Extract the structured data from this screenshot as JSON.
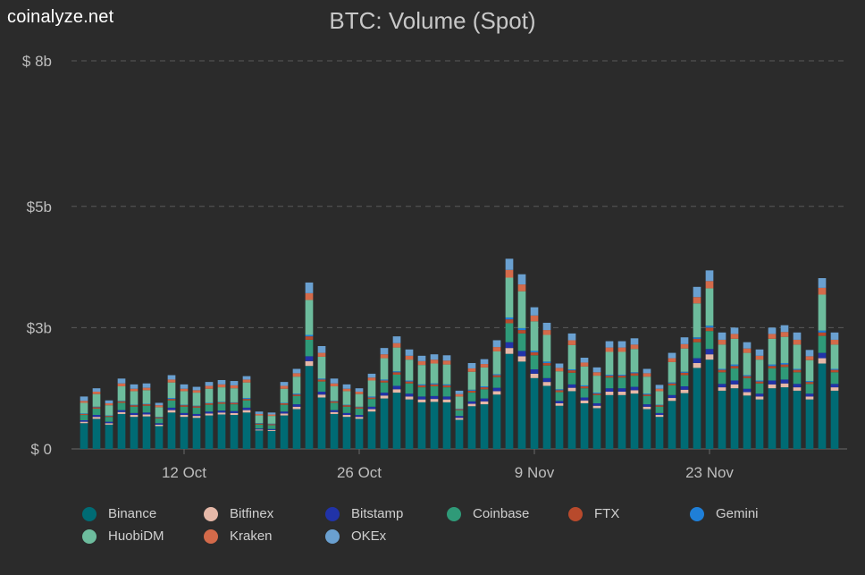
{
  "brand": "coinalyze.net",
  "chart_data": {
    "type": "bar",
    "stacked": true,
    "title": "BTC: Volume (Spot)",
    "xlabel": "",
    "ylabel": "",
    "y_ticks": [
      {
        "value": 0,
        "label": "$ 0"
      },
      {
        "value": 2.5,
        "label": "$3b"
      },
      {
        "value": 5,
        "label": "$5b"
      },
      {
        "value": 8,
        "label": "$ 8b"
      }
    ],
    "ylim": [
      0,
      8
    ],
    "y_unit": "billion USD",
    "x_start": "2021-10-03",
    "x_end": "2021-12-04",
    "x_ticks": [
      {
        "date": "2021-10-12",
        "label": "12 Oct"
      },
      {
        "date": "2021-10-26",
        "label": "26 Oct"
      },
      {
        "date": "2021-11-09",
        "label": "9 Nov"
      },
      {
        "date": "2021-11-23",
        "label": "23 Nov"
      }
    ],
    "grid": true,
    "legend_position": "bottom",
    "categories": [
      "2021-10-04",
      "2021-10-05",
      "2021-10-06",
      "2021-10-07",
      "2021-10-08",
      "2021-10-09",
      "2021-10-10",
      "2021-10-11",
      "2021-10-12",
      "2021-10-13",
      "2021-10-14",
      "2021-10-15",
      "2021-10-16",
      "2021-10-17",
      "2021-10-18",
      "2021-10-19",
      "2021-10-20",
      "2021-10-21",
      "2021-10-22",
      "2021-10-23",
      "2021-10-24",
      "2021-10-25",
      "2021-10-26",
      "2021-10-27",
      "2021-10-28",
      "2021-10-29",
      "2021-10-30",
      "2021-10-31",
      "2021-11-01",
      "2021-11-02",
      "2021-11-03",
      "2021-11-04",
      "2021-11-05",
      "2021-11-06",
      "2021-11-07",
      "2021-11-08",
      "2021-11-09",
      "2021-11-10",
      "2021-11-11",
      "2021-11-12",
      "2021-11-13",
      "2021-11-14",
      "2021-11-15",
      "2021-11-16",
      "2021-11-17",
      "2021-11-18",
      "2021-11-19",
      "2021-11-20",
      "2021-11-21",
      "2021-11-22",
      "2021-11-23",
      "2021-11-24",
      "2021-11-25",
      "2021-11-26",
      "2021-11-27",
      "2021-11-28",
      "2021-11-29",
      "2021-11-30",
      "2021-12-01",
      "2021-12-02",
      "2021-12-03"
    ],
    "totals": [
      1.08,
      1.25,
      1.0,
      1.45,
      1.33,
      1.35,
      0.95,
      1.52,
      1.33,
      1.28,
      1.38,
      1.42,
      1.4,
      1.5,
      0.77,
      0.75,
      1.38,
      1.65,
      3.43,
      2.12,
      1.45,
      1.33,
      1.25,
      1.55,
      2.08,
      2.32,
      2.05,
      1.92,
      1.95,
      1.93,
      1.2,
      1.77,
      1.85,
      2.24,
      3.92,
      3.6,
      2.92,
      2.6,
      1.78,
      2.38,
      1.88,
      1.68,
      2.22,
      2.22,
      2.28,
      1.65,
      1.32,
      1.98,
      2.3,
      3.34,
      3.68,
      2.4,
      2.5,
      2.2,
      2.05,
      2.5,
      2.55,
      2.4,
      2.04,
      3.52,
      2.4
    ],
    "series": [
      {
        "name": "Binance",
        "color": "#006b74",
        "values": [
          0.53,
          0.62,
          0.5,
          0.72,
          0.66,
          0.67,
          0.47,
          0.75,
          0.66,
          0.64,
          0.69,
          0.71,
          0.7,
          0.75,
          0.38,
          0.37,
          0.69,
          0.82,
          1.71,
          1.06,
          0.72,
          0.66,
          0.62,
          0.77,
          1.04,
          1.16,
          1.02,
          0.96,
          0.97,
          0.96,
          0.6,
          0.88,
          0.92,
          1.12,
          1.96,
          1.8,
          1.46,
          1.3,
          0.89,
          1.19,
          0.94,
          0.84,
          1.11,
          1.11,
          1.14,
          0.82,
          0.66,
          0.99,
          1.15,
          1.67,
          1.84,
          1.2,
          1.25,
          1.1,
          1.02,
          1.25,
          1.27,
          1.2,
          1.02,
          1.76,
          1.2
        ]
      },
      {
        "name": "Bitfinex",
        "color": "#e5b8a8",
        "values": [
          0.03,
          0.04,
          0.03,
          0.04,
          0.04,
          0.04,
          0.03,
          0.05,
          0.04,
          0.04,
          0.04,
          0.04,
          0.04,
          0.05,
          0.02,
          0.02,
          0.04,
          0.05,
          0.1,
          0.06,
          0.04,
          0.04,
          0.04,
          0.05,
          0.06,
          0.07,
          0.06,
          0.06,
          0.06,
          0.06,
          0.04,
          0.05,
          0.06,
          0.07,
          0.12,
          0.11,
          0.09,
          0.08,
          0.05,
          0.07,
          0.06,
          0.05,
          0.07,
          0.07,
          0.07,
          0.05,
          0.04,
          0.06,
          0.07,
          0.1,
          0.11,
          0.07,
          0.08,
          0.07,
          0.06,
          0.08,
          0.08,
          0.07,
          0.06,
          0.11,
          0.07
        ]
      },
      {
        "name": "Bitstamp",
        "color": "#2133a8",
        "values": [
          0.03,
          0.04,
          0.03,
          0.04,
          0.04,
          0.04,
          0.03,
          0.05,
          0.04,
          0.04,
          0.04,
          0.04,
          0.04,
          0.05,
          0.02,
          0.02,
          0.04,
          0.05,
          0.1,
          0.06,
          0.04,
          0.04,
          0.04,
          0.05,
          0.06,
          0.07,
          0.06,
          0.06,
          0.06,
          0.06,
          0.04,
          0.05,
          0.06,
          0.07,
          0.12,
          0.11,
          0.09,
          0.08,
          0.05,
          0.07,
          0.06,
          0.05,
          0.07,
          0.07,
          0.07,
          0.05,
          0.04,
          0.06,
          0.07,
          0.1,
          0.11,
          0.07,
          0.08,
          0.07,
          0.06,
          0.08,
          0.08,
          0.07,
          0.06,
          0.11,
          0.07
        ]
      },
      {
        "name": "Coinbase",
        "color": "#2f9a78",
        "values": [
          0.11,
          0.13,
          0.1,
          0.15,
          0.13,
          0.14,
          0.1,
          0.15,
          0.13,
          0.13,
          0.14,
          0.14,
          0.14,
          0.15,
          0.08,
          0.08,
          0.14,
          0.17,
          0.34,
          0.21,
          0.15,
          0.13,
          0.13,
          0.16,
          0.21,
          0.23,
          0.21,
          0.19,
          0.2,
          0.19,
          0.12,
          0.18,
          0.19,
          0.22,
          0.39,
          0.36,
          0.29,
          0.26,
          0.18,
          0.24,
          0.19,
          0.17,
          0.22,
          0.22,
          0.23,
          0.17,
          0.13,
          0.2,
          0.23,
          0.33,
          0.37,
          0.24,
          0.25,
          0.22,
          0.21,
          0.25,
          0.26,
          0.24,
          0.2,
          0.35,
          0.24
        ]
      },
      {
        "name": "FTX",
        "color": "#b84a2c",
        "values": [
          0.02,
          0.03,
          0.02,
          0.03,
          0.03,
          0.03,
          0.02,
          0.03,
          0.03,
          0.03,
          0.03,
          0.03,
          0.03,
          0.03,
          0.02,
          0.02,
          0.03,
          0.03,
          0.07,
          0.04,
          0.03,
          0.03,
          0.03,
          0.03,
          0.04,
          0.05,
          0.04,
          0.04,
          0.04,
          0.04,
          0.02,
          0.04,
          0.04,
          0.04,
          0.08,
          0.07,
          0.06,
          0.05,
          0.04,
          0.05,
          0.04,
          0.03,
          0.04,
          0.04,
          0.05,
          0.03,
          0.03,
          0.04,
          0.05,
          0.07,
          0.07,
          0.05,
          0.05,
          0.04,
          0.04,
          0.05,
          0.05,
          0.05,
          0.04,
          0.07,
          0.05
        ]
      },
      {
        "name": "Gemini",
        "color": "#1f7fd8",
        "values": [
          0.01,
          0.01,
          0.01,
          0.01,
          0.01,
          0.01,
          0.01,
          0.02,
          0.01,
          0.01,
          0.01,
          0.01,
          0.01,
          0.02,
          0.01,
          0.01,
          0.01,
          0.02,
          0.03,
          0.02,
          0.01,
          0.01,
          0.01,
          0.02,
          0.02,
          0.02,
          0.02,
          0.02,
          0.02,
          0.02,
          0.01,
          0.02,
          0.02,
          0.02,
          0.04,
          0.04,
          0.03,
          0.03,
          0.02,
          0.02,
          0.02,
          0.02,
          0.02,
          0.02,
          0.02,
          0.02,
          0.01,
          0.02,
          0.02,
          0.03,
          0.04,
          0.02,
          0.03,
          0.02,
          0.02,
          0.03,
          0.03,
          0.02,
          0.02,
          0.04,
          0.02
        ]
      },
      {
        "name": "HuobiDM",
        "color": "#6dbc9d",
        "values": [
          0.22,
          0.26,
          0.21,
          0.3,
          0.28,
          0.28,
          0.2,
          0.32,
          0.28,
          0.27,
          0.29,
          0.3,
          0.29,
          0.32,
          0.16,
          0.16,
          0.29,
          0.35,
          0.72,
          0.45,
          0.3,
          0.28,
          0.26,
          0.33,
          0.44,
          0.49,
          0.43,
          0.4,
          0.41,
          0.41,
          0.25,
          0.37,
          0.39,
          0.47,
          0.82,
          0.76,
          0.61,
          0.55,
          0.37,
          0.5,
          0.39,
          0.35,
          0.47,
          0.47,
          0.48,
          0.35,
          0.28,
          0.42,
          0.48,
          0.7,
          0.77,
          0.5,
          0.53,
          0.46,
          0.43,
          0.53,
          0.54,
          0.5,
          0.43,
          0.74,
          0.5
        ]
      },
      {
        "name": "Kraken",
        "color": "#d36a4a",
        "values": [
          0.04,
          0.05,
          0.04,
          0.06,
          0.05,
          0.05,
          0.04,
          0.06,
          0.05,
          0.05,
          0.06,
          0.06,
          0.06,
          0.06,
          0.03,
          0.03,
          0.06,
          0.07,
          0.14,
          0.08,
          0.06,
          0.05,
          0.05,
          0.06,
          0.08,
          0.09,
          0.08,
          0.08,
          0.08,
          0.08,
          0.05,
          0.07,
          0.07,
          0.09,
          0.16,
          0.14,
          0.12,
          0.1,
          0.07,
          0.1,
          0.08,
          0.07,
          0.09,
          0.09,
          0.09,
          0.07,
          0.05,
          0.08,
          0.09,
          0.13,
          0.15,
          0.1,
          0.1,
          0.09,
          0.08,
          0.1,
          0.1,
          0.1,
          0.08,
          0.14,
          0.1
        ]
      },
      {
        "name": "OKEx",
        "color": "#6aa0d0",
        "values": [
          0.09,
          0.07,
          0.06,
          0.1,
          0.09,
          0.09,
          0.05,
          0.09,
          0.09,
          0.07,
          0.08,
          0.09,
          0.09,
          0.07,
          0.05,
          0.04,
          0.08,
          0.09,
          0.22,
          0.14,
          0.1,
          0.09,
          0.07,
          0.08,
          0.13,
          0.14,
          0.13,
          0.11,
          0.11,
          0.11,
          0.07,
          0.11,
          0.1,
          0.14,
          0.23,
          0.21,
          0.17,
          0.15,
          0.09,
          0.14,
          0.1,
          0.1,
          0.13,
          0.13,
          0.13,
          0.09,
          0.08,
          0.11,
          0.14,
          0.21,
          0.22,
          0.15,
          0.13,
          0.13,
          0.13,
          0.13,
          0.14,
          0.15,
          0.13,
          0.2,
          0.15
        ]
      }
    ]
  }
}
